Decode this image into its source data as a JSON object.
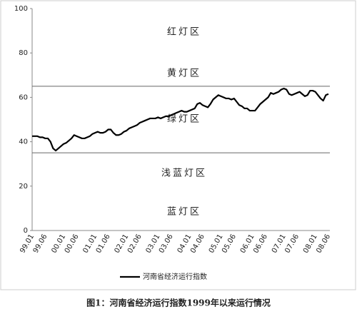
{
  "chart_data": {
    "type": "line",
    "caption": "图1：河南省经济运行指数1999年以来运行情况",
    "annotations": [
      "红灯区",
      "黄灯区",
      "绿灯区",
      "浅蓝灯区",
      "蓝灯区"
    ],
    "thresholds": [
      65,
      35
    ],
    "categories": [
      "99.01",
      null,
      null,
      null,
      null,
      "99.06",
      null,
      null,
      null,
      null,
      null,
      null,
      "00.01",
      null,
      null,
      null,
      null,
      "00.06",
      null,
      null,
      null,
      null,
      null,
      null,
      "01.01",
      null,
      null,
      null,
      null,
      "01.06",
      null,
      null,
      null,
      null,
      null,
      null,
      "02.01",
      null,
      null,
      null,
      null,
      "02.06",
      null,
      null,
      null,
      null,
      null,
      null,
      "03.01",
      null,
      null,
      null,
      null,
      "03.06",
      null,
      null,
      null,
      null,
      null,
      null,
      "04.01",
      null,
      null,
      null,
      null,
      "04.06",
      null,
      null,
      null,
      null,
      null,
      null,
      "05.01",
      null,
      null,
      null,
      null,
      "05.06",
      null,
      null,
      null,
      null,
      null,
      null,
      "06.01",
      null,
      null,
      null,
      null,
      "06.06",
      null,
      null,
      null,
      null,
      null,
      null,
      "07.01",
      null,
      null,
      null,
      null,
      "07.06",
      null,
      null,
      null,
      null,
      null,
      null,
      "08.01",
      null,
      null,
      null,
      null,
      "08.06"
    ],
    "series": [
      {
        "name": "河南省经济运行指数",
        "color": "#000000",
        "values": [
          42.5,
          42.5,
          42.5,
          42,
          42,
          41.5,
          41.5,
          40,
          37,
          36,
          37,
          38,
          39,
          39.5,
          40.5,
          41.5,
          43,
          42.5,
          42,
          41.5,
          41.5,
          42,
          42.5,
          43.5,
          44,
          44.5,
          44,
          44,
          44.5,
          45.5,
          45.5,
          44,
          43,
          43,
          43.5,
          44.5,
          45,
          46,
          46.5,
          47,
          47.5,
          48.5,
          49,
          49.5,
          50,
          50.5,
          50.5,
          50.5,
          51,
          50.5,
          51,
          51.5,
          51.5,
          52,
          52.5,
          53,
          53.5,
          54,
          53.5,
          53.5,
          54,
          54.5,
          55,
          57,
          57.5,
          56.5,
          56,
          55.5,
          57,
          59,
          60,
          61,
          60.5,
          60,
          59.5,
          59.5,
          59,
          59.5,
          58,
          56.5,
          56,
          55,
          55,
          54,
          54,
          54,
          55.5,
          57,
          58,
          59,
          60,
          62,
          61.5,
          62,
          62.5,
          63.5,
          64,
          63.5,
          61.5,
          61,
          61.5,
          62,
          62.5,
          61.5,
          60.5,
          61,
          63,
          63,
          62.5,
          61,
          59.5,
          58.5,
          61,
          61.5
        ]
      }
    ],
    "ylim": [
      0,
      100
    ],
    "yticks": [
      0,
      20,
      40,
      60,
      80,
      100
    ],
    "legend": "bottom"
  }
}
